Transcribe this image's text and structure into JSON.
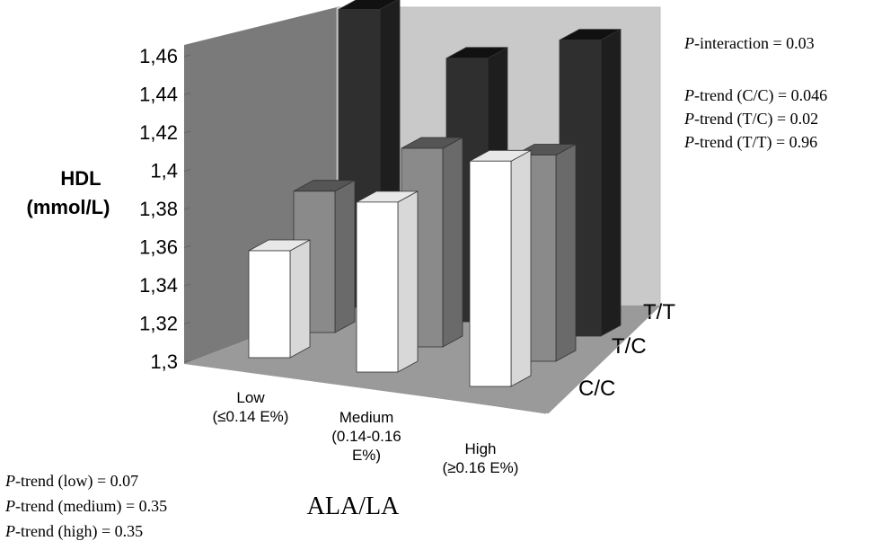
{
  "chart_data": {
    "type": "bar",
    "subtype": "3d-grouped-bar",
    "ylabel_line1": "HDL",
    "ylabel_line2": "(mmol/L)",
    "xlabel": "ALA/LA",
    "ylim": [
      1.3,
      1.46
    ],
    "yticks": [
      "1,46",
      "1,44",
      "1,42",
      "1,4",
      "1,38",
      "1,36",
      "1,34",
      "1,32",
      "1,3"
    ],
    "ytick_values": [
      1.46,
      1.44,
      1.42,
      1.4,
      1.38,
      1.36,
      1.34,
      1.32,
      1.3
    ],
    "categories": [
      {
        "lines": [
          "Low",
          "(≤0.14 E%)"
        ]
      },
      {
        "lines": [
          "Medium",
          "(0.14-0.16",
          "E%)"
        ]
      },
      {
        "lines": [
          "High",
          "(≥0.16 E%)"
        ]
      }
    ],
    "series": [
      {
        "name": "C/C",
        "values": [
          1.356,
          1.389,
          1.418
        ],
        "color": "#ffffff"
      },
      {
        "name": "T/C",
        "values": [
          1.374,
          1.404,
          1.408
        ],
        "color": "#8a8a8a"
      },
      {
        "name": "T/T",
        "values": [
          1.456,
          1.438,
          1.455
        ],
        "color": "#2f2f2f"
      }
    ],
    "annotations": {
      "interaction": {
        "italic": "P",
        "text": "-interaction = 0.03"
      },
      "trends_genotype": [
        {
          "italic": "P",
          "text": "-trend (C/C) = 0.046"
        },
        {
          "italic": "P",
          "text": "-trend (T/C) = 0.02"
        },
        {
          "italic": "P",
          "text": "-trend (T/T) = 0.96"
        }
      ],
      "trends_category": [
        {
          "italic": "P",
          "text": "-trend (low) = 0.07"
        },
        {
          "italic": "P",
          "text": "-trend (medium) = 0.35"
        },
        {
          "italic": "P",
          "text": "-trend (high) = 0.35"
        }
      ]
    }
  }
}
